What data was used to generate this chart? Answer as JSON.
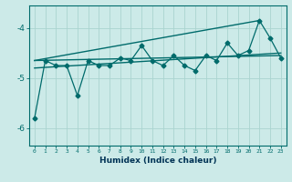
{
  "xlabel": "Humidex (Indice chaleur)",
  "ylabel": "",
  "bg_color": "#cceae8",
  "grid_color": "#aad4d0",
  "line_color": "#006b6b",
  "xlim": [
    -0.5,
    23.5
  ],
  "ylim": [
    -6.35,
    -3.55
  ],
  "yticks": [
    -6,
    -5,
    -4
  ],
  "xticks": [
    0,
    1,
    2,
    3,
    4,
    5,
    6,
    7,
    8,
    9,
    10,
    11,
    12,
    13,
    14,
    15,
    16,
    17,
    18,
    19,
    20,
    21,
    22,
    23
  ],
  "main_x": [
    0,
    1,
    2,
    3,
    4,
    5,
    6,
    7,
    8,
    9,
    10,
    11,
    12,
    13,
    14,
    15,
    16,
    17,
    18,
    19,
    20,
    21,
    22,
    23
  ],
  "main_y": [
    -5.8,
    -4.65,
    -4.75,
    -4.75,
    -5.35,
    -4.65,
    -4.75,
    -4.75,
    -4.6,
    -4.65,
    -4.35,
    -4.65,
    -4.75,
    -4.55,
    -4.75,
    -4.85,
    -4.55,
    -4.65,
    -4.3,
    -4.55,
    -4.45,
    -3.85,
    -4.2,
    -4.6
  ],
  "trend1_x": [
    0,
    23
  ],
  "trend1_y": [
    -4.65,
    -4.55
  ],
  "trend2_x": [
    0,
    21
  ],
  "trend2_y": [
    -4.65,
    -3.85
  ],
  "trend3_x": [
    0,
    23
  ],
  "trend3_y": [
    -4.8,
    -4.5
  ]
}
